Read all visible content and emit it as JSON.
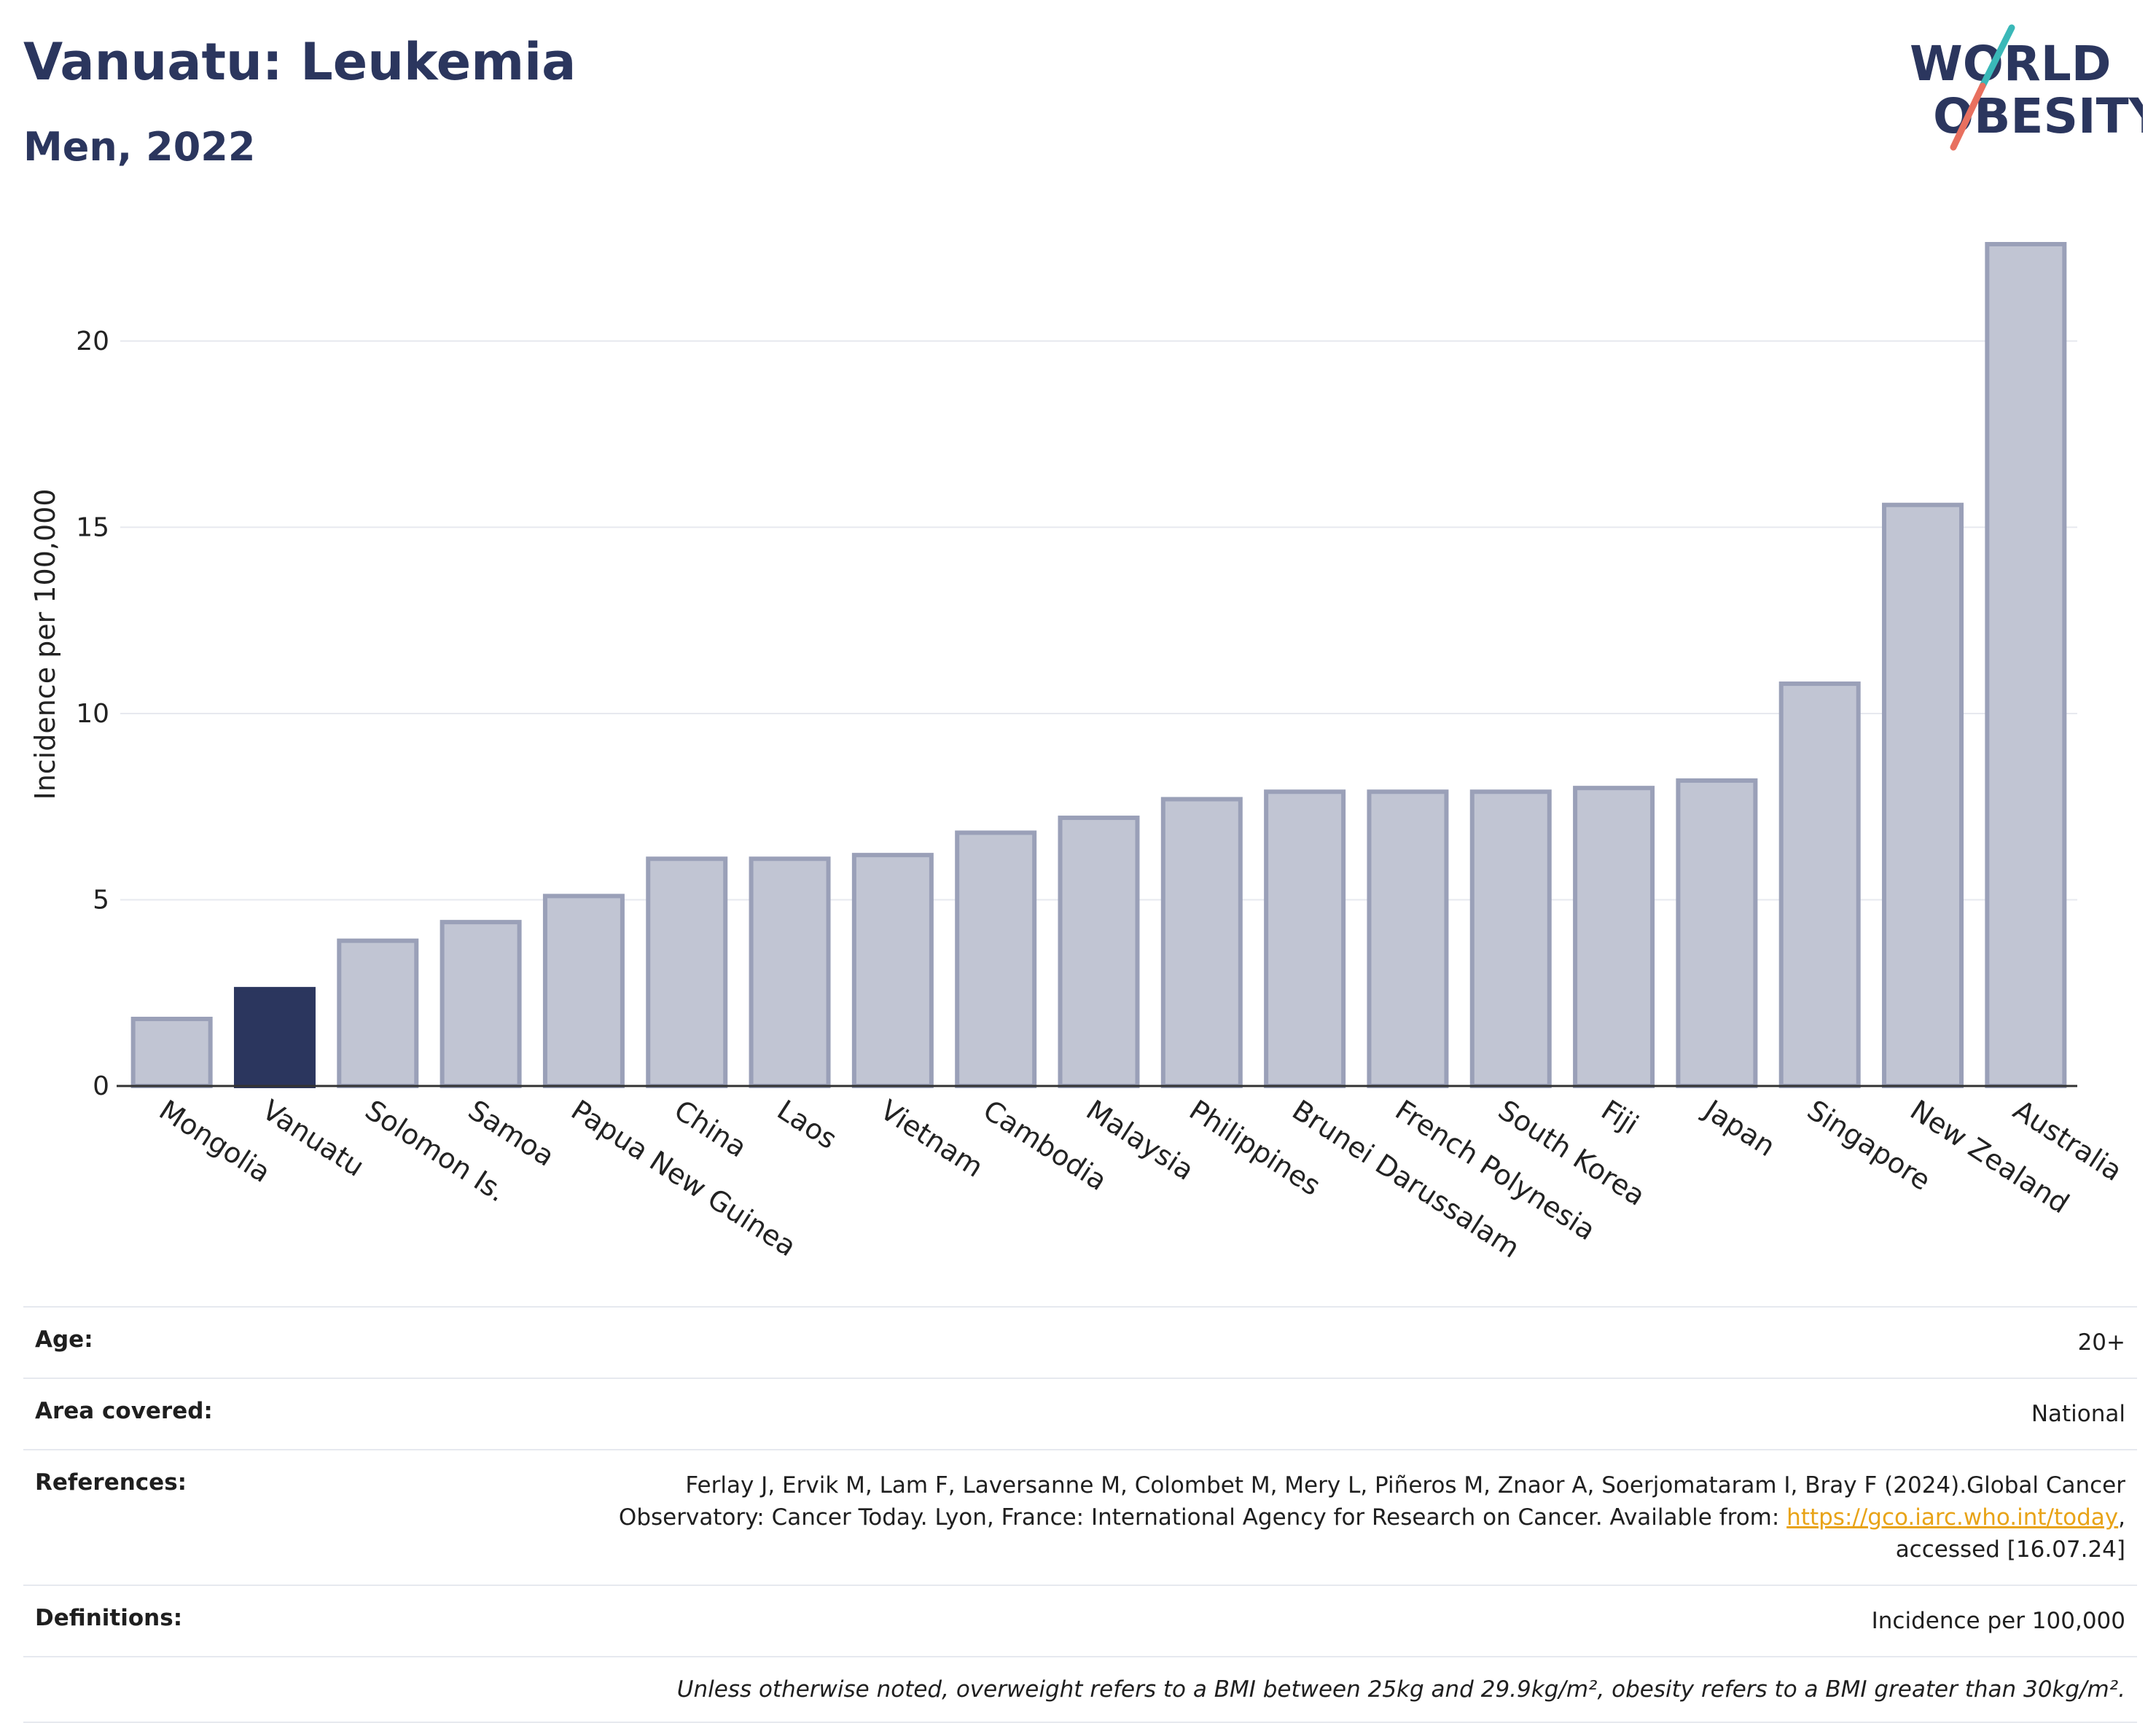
{
  "header": {
    "title": "Vanuatu: Leukemia",
    "subtitle": "Men, 2022",
    "logo_line1": "WORLD",
    "logo_line2": "OBESITY"
  },
  "chart_data": {
    "type": "bar",
    "title": "Vanuatu: Leukemia",
    "subtitle": "Men, 2022",
    "ylabel": "Incidence per 100,000",
    "xlabel": "",
    "ylim": [
      0,
      24
    ],
    "yticks": [
      0,
      5,
      10,
      15,
      20
    ],
    "grid": true,
    "legend": "none",
    "categories": [
      "Mongolia",
      "Vanuatu",
      "Solomon Is.",
      "Samoa",
      "Papua New Guinea",
      "China",
      "Laos",
      "Vietnam",
      "Cambodia",
      "Malaysia",
      "Philippines",
      "Brunei Darussalam",
      "French Polynesia",
      "South Korea",
      "Fiji",
      "Japan",
      "Singapore",
      "New Zealand",
      "Australia"
    ],
    "values": [
      1.8,
      2.6,
      3.9,
      4.4,
      5.1,
      6.1,
      6.1,
      6.2,
      6.8,
      7.2,
      7.7,
      7.9,
      7.9,
      7.9,
      8.0,
      8.2,
      10.8,
      15.6,
      22.6
    ],
    "highlight": "Vanuatu",
    "colors": {
      "bar": "#c1c5d3",
      "bar_border": "#9aa0b8",
      "highlight": "#2b365e",
      "grid": "#e7e9ef",
      "axis": "#333333"
    }
  },
  "meta": {
    "age_label": "Age:",
    "age_value": "20+",
    "area_label": "Area covered:",
    "area_value": "National",
    "ref_label": "References:",
    "ref_line1": "Ferlay J, Ervik M, Lam F, Laversanne M, Colombet M, Mery L, Piñeros M, Znaor A, Soerjomataram I, Bray F (2024).Global Cancer",
    "ref_line2": "Observatory: Cancer Today. Lyon, France: International Agency for Research on Cancer. Available from: ",
    "ref_link": "https://gco.iarc.who.int/today",
    "ref_line3": "accessed [16.07.24]",
    "def_label": "Definitions:",
    "def_value": "Incidence per 100,000",
    "note": "Unless otherwise noted, overweight refers to a BMI between 25kg and 29.9kg/m², obesity refers to a BMI greater than 30kg/m²."
  }
}
